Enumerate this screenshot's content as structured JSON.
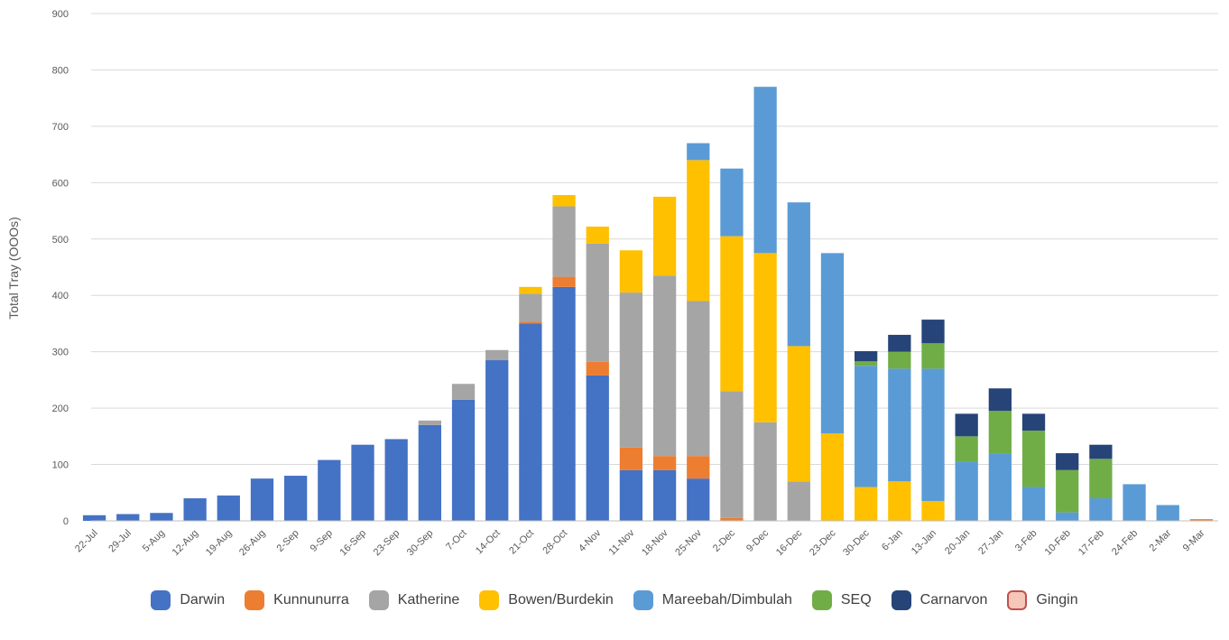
{
  "chart_data": {
    "type": "bar",
    "stacked": true,
    "title": "",
    "xlabel": "",
    "ylabel": "Total Tray (OOOs)",
    "ylim": [
      0,
      900
    ],
    "yticks": [
      0,
      100,
      200,
      300,
      400,
      500,
      600,
      700,
      800,
      900
    ],
    "grid": true,
    "legend_position": "bottom",
    "categories": [
      "22-Jul",
      "29-Jul",
      "5-Aug",
      "12-Aug",
      "19-Aug",
      "26-Aug",
      "2-Sep",
      "9-Sep",
      "16-Sep",
      "23-Sep",
      "30-Sep",
      "7-Oct",
      "14-Oct",
      "21-Oct",
      "28-Oct",
      "4-Nov",
      "11-Nov",
      "18-Nov",
      "25-Nov",
      "2-Dec",
      "9-Dec",
      "16-Dec",
      "23-Dec",
      "30-Dec",
      "6-Jan",
      "13-Jan",
      "20-Jan",
      "27-Jan",
      "3-Feb",
      "10-Feb",
      "17-Feb",
      "24-Feb",
      "2-Mar",
      "9-Mar"
    ],
    "series": [
      {
        "name": "Darwin",
        "color": "#4472C4",
        "values": [
          10,
          12,
          14,
          40,
          45,
          75,
          80,
          108,
          135,
          145,
          170,
          215,
          285,
          350,
          415,
          258,
          90,
          90,
          75,
          0,
          0,
          0,
          0,
          0,
          0,
          0,
          0,
          0,
          0,
          0,
          0,
          0,
          0,
          0
        ]
      },
      {
        "name": "Kunnunurra",
        "color": "#ED7D31",
        "values": [
          0,
          0,
          0,
          0,
          0,
          0,
          0,
          0,
          0,
          0,
          0,
          0,
          0,
          3,
          18,
          24,
          40,
          25,
          40,
          5,
          0,
          0,
          0,
          0,
          0,
          0,
          0,
          0,
          0,
          0,
          0,
          0,
          0,
          3
        ]
      },
      {
        "name": "Katherine",
        "color": "#A5A5A5",
        "values": [
          0,
          0,
          0,
          0,
          0,
          0,
          0,
          0,
          0,
          0,
          8,
          28,
          18,
          50,
          125,
          210,
          275,
          320,
          275,
          225,
          175,
          70,
          0,
          0,
          0,
          0,
          0,
          0,
          0,
          0,
          0,
          0,
          0,
          0
        ]
      },
      {
        "name": "Bowen/Burdekin",
        "color": "#FFC000",
        "values": [
          0,
          0,
          0,
          0,
          0,
          0,
          0,
          0,
          0,
          0,
          0,
          0,
          0,
          12,
          20,
          30,
          75,
          140,
          250,
          275,
          300,
          240,
          155,
          60,
          70,
          35,
          0,
          0,
          0,
          0,
          0,
          0,
          0,
          0
        ]
      },
      {
        "name": "Mareebah/Dimbulah",
        "color": "#5B9BD5",
        "values": [
          0,
          0,
          0,
          0,
          0,
          0,
          0,
          0,
          0,
          0,
          0,
          0,
          0,
          0,
          0,
          0,
          0,
          0,
          30,
          120,
          295,
          255,
          320,
          215,
          200,
          235,
          105,
          120,
          60,
          15,
          40,
          65,
          28,
          0
        ]
      },
      {
        "name": "SEQ",
        "color": "#70AD47",
        "values": [
          0,
          0,
          0,
          0,
          0,
          0,
          0,
          0,
          0,
          0,
          0,
          0,
          0,
          0,
          0,
          0,
          0,
          0,
          0,
          0,
          0,
          0,
          0,
          8,
          30,
          45,
          45,
          75,
          100,
          75,
          70,
          0,
          0,
          0
        ]
      },
      {
        "name": "Carnarvon",
        "color": "#264478",
        "values": [
          0,
          0,
          0,
          0,
          0,
          0,
          0,
          0,
          0,
          0,
          0,
          0,
          0,
          0,
          0,
          0,
          0,
          0,
          0,
          0,
          0,
          0,
          0,
          18,
          30,
          42,
          40,
          40,
          30,
          30,
          25,
          0,
          0,
          0
        ]
      },
      {
        "name": "Gingin",
        "color": "#F4C7B8",
        "values": [
          0,
          0,
          0,
          0,
          0,
          0,
          0,
          0,
          0,
          0,
          0,
          0,
          0,
          0,
          0,
          0,
          0,
          0,
          0,
          0,
          0,
          0,
          0,
          0,
          0,
          0,
          0,
          0,
          0,
          0,
          0,
          0,
          0,
          0
        ]
      }
    ]
  }
}
